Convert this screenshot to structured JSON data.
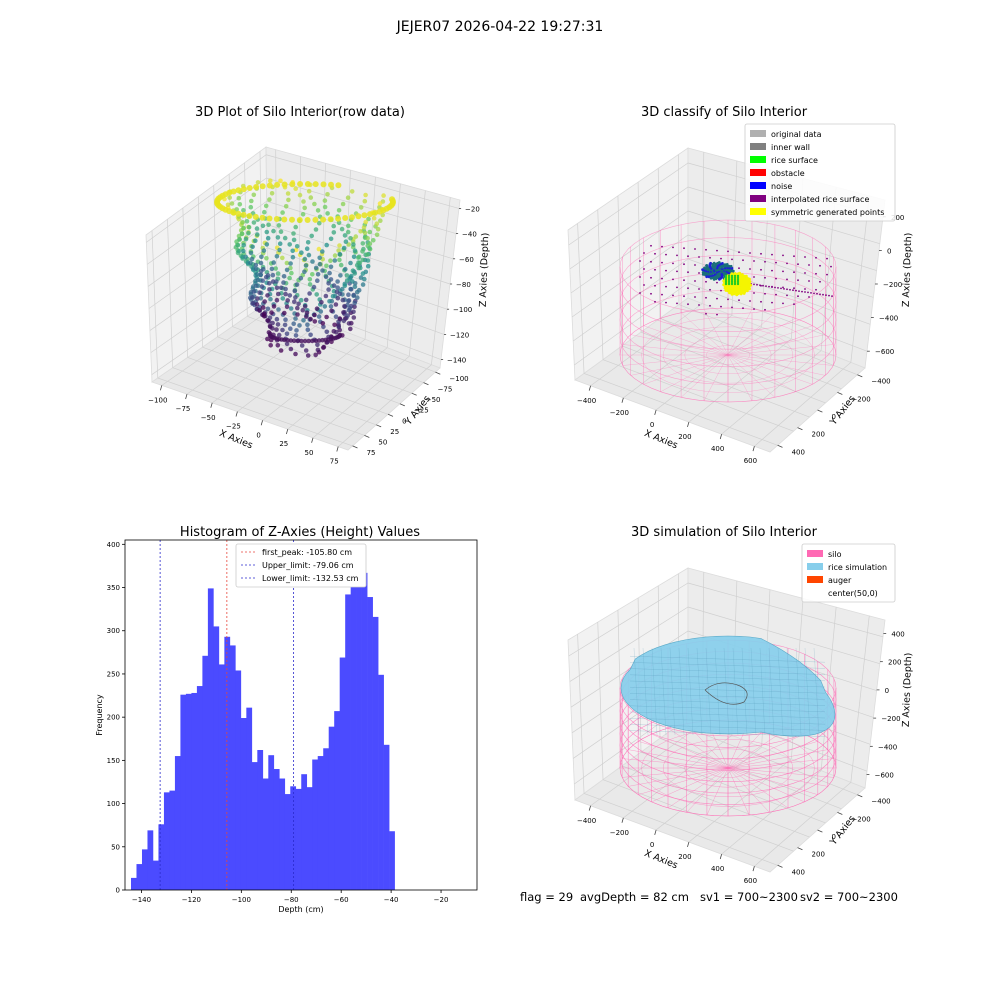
{
  "figure_title": "JEJER07 2026-04-22 19:27:31",
  "footer": {
    "flag": "flag = 29",
    "avg_depth": "avgDepth = 82 cm",
    "sv1": "sv1 = 700~2300",
    "sv2": "sv2 = 700~2300"
  },
  "colors": {
    "hist_bar": "#4b4bff",
    "first_peak_line": "#e8453c",
    "limit_line": "#2a2acc",
    "silo_wire": "#ff69b4",
    "rice_surface": "#87ceeb",
    "auger": "#ff4500",
    "viridis_dark": "#440154",
    "viridis_mid": "#21918c",
    "viridis_light": "#fde725"
  },
  "chart_data": [
    {
      "type": "scatter",
      "title": "3D Plot of Silo Interior(row data)",
      "xlabel": "X Axies",
      "ylabel": "Y Axies",
      "zlabel": "Z Axies (Depth)",
      "x_ticks": [
        "−100",
        "−75",
        "−50",
        "−25",
        "0",
        "25",
        "50",
        "75"
      ],
      "y_ticks": [
        "−100",
        "−75",
        "−50",
        "−25",
        "0",
        "25",
        "50",
        "75"
      ],
      "z_ticks": [
        "−140",
        "−120",
        "−100",
        "−80",
        "−60",
        "−40",
        "−20"
      ],
      "xlim": [
        -110,
        85
      ],
      "ylim": [
        -110,
        85
      ],
      "zlim": [
        -150,
        -10
      ],
      "colormap": "viridis",
      "grid": true
    },
    {
      "type": "scatter",
      "title": "3D classify of Silo Interior",
      "xlabel": "X Axies",
      "ylabel": "Y Axies",
      "zlabel": "Z Axies (Depth)",
      "x_ticks": [
        "−400",
        "−200",
        "0",
        "200",
        "400",
        "600"
      ],
      "y_ticks": [
        "−400",
        "−200",
        "0",
        "200",
        "400"
      ],
      "z_ticks": [
        "−600",
        "−400",
        "−200",
        "0",
        "200"
      ],
      "legend_position": "top-right",
      "legend": [
        {
          "label": "original data",
          "color": "#b0b0b0"
        },
        {
          "label": "inner wall",
          "color": "#808080"
        },
        {
          "label": "rice surface",
          "color": "#00ff00"
        },
        {
          "label": "obstacle",
          "color": "#ff0000"
        },
        {
          "label": "noise",
          "color": "#0000ff"
        },
        {
          "label": "interpolated rice surface",
          "color": "#800080"
        },
        {
          "label": "symmetric generated points",
          "color": "#ffff00"
        }
      ],
      "grid": true
    },
    {
      "type": "bar",
      "title": "Histogram of Z-Axies (Height) Values",
      "xlabel": "Depth (cm)",
      "ylabel": "Frequency",
      "xlim": [
        -146.6,
        -5.6
      ],
      "ylim": [
        0,
        405
      ],
      "x_ticks": [
        "−140",
        "−120",
        "−100",
        "−80",
        "−60",
        "−40",
        "−20"
      ],
      "y_ticks": [
        "0",
        "50",
        "100",
        "150",
        "200",
        "250",
        "300",
        "350",
        "400"
      ],
      "bin_start": -144.2,
      "bin_width": 2.2,
      "values": [
        14,
        30,
        47,
        69,
        34,
        76,
        113,
        115,
        155,
        226,
        227,
        228,
        236,
        271,
        349,
        305,
        261,
        293,
        283,
        254,
        199,
        211,
        148,
        162,
        129,
        156,
        140,
        129,
        111,
        120,
        117,
        134,
        119,
        151,
        155,
        164,
        189,
        207,
        269,
        342,
        373,
        386,
        367,
        339,
        316,
        249,
        168,
        68
      ],
      "vlines": [
        {
          "label": "first_peak: -105.80 cm",
          "x": -105.8,
          "kind": "first_peak"
        },
        {
          "label": "Upper_limit: -79.06 cm",
          "x": -79.06,
          "kind": "limit"
        },
        {
          "label": "Lower_limit: -132.53 cm",
          "x": -132.53,
          "kind": "limit"
        }
      ],
      "legend_position": "upper-center",
      "grid": false
    },
    {
      "type": "area",
      "title": "3D simulation of Silo Interior",
      "xlabel": "X Axies",
      "ylabel": "Y Axies",
      "zlabel": "Z Axies (Depth)",
      "x_ticks": [
        "−400",
        "−200",
        "0",
        "200",
        "400",
        "600"
      ],
      "y_ticks": [
        "−400",
        "−200",
        "0",
        "200",
        "400"
      ],
      "z_ticks": [
        "−600",
        "−400",
        "−200",
        "0",
        "200",
        "400"
      ],
      "legend_position": "top-right",
      "legend": [
        {
          "label": "silo",
          "color": "#ff69b4"
        },
        {
          "label": "rice simulation",
          "color": "#87ceeb"
        },
        {
          "label": "auger",
          "color": "#ff4500"
        },
        {
          "label": "center(50,0)",
          "color": "#ffffff"
        }
      ],
      "grid": true
    }
  ]
}
